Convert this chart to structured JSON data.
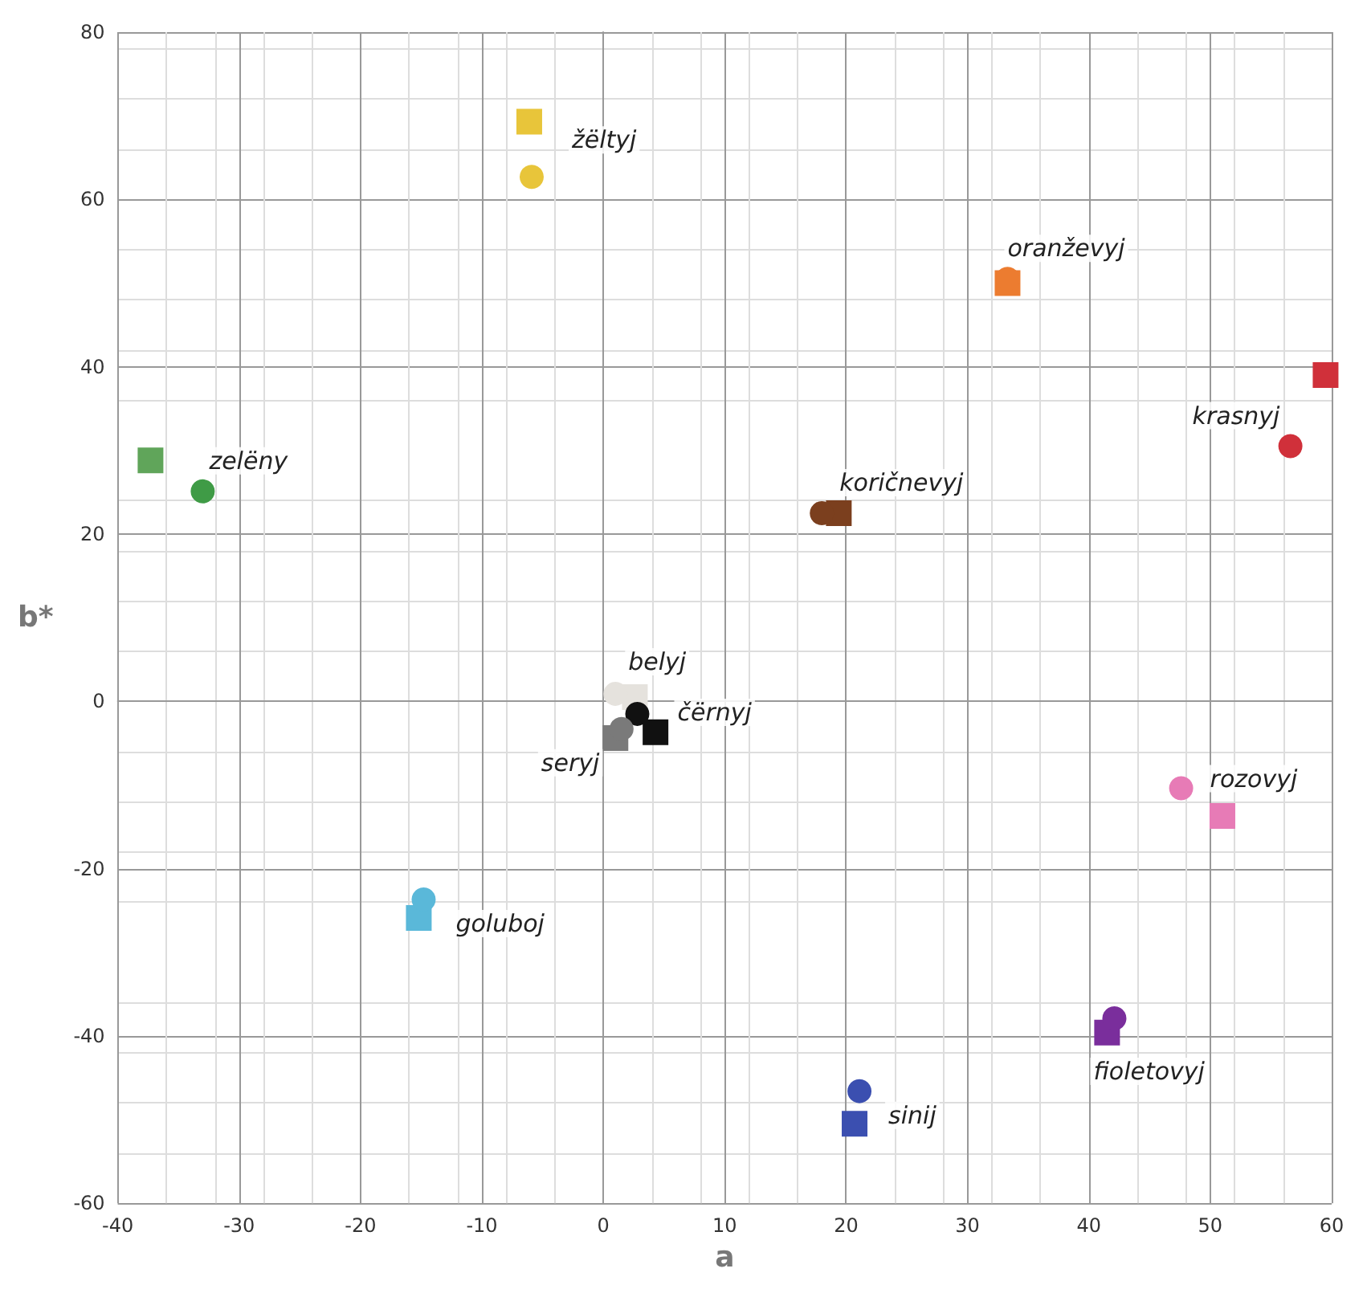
{
  "chart_data": {
    "type": "scatter",
    "xlabel": "a",
    "ylabel": "b*",
    "xlim": [
      -40,
      60
    ],
    "xticks": [
      -40,
      -30,
      -20,
      -10,
      0,
      10,
      20,
      30,
      40,
      50,
      60
    ],
    "ylim": [
      -60,
      80
    ],
    "yticks": [
      -60,
      -40,
      -20,
      0,
      20,
      40,
      60,
      80
    ],
    "grid": true,
    "legend": false,
    "series": [
      {
        "name": "žëltyj",
        "marker": "circle",
        "color": "#e8c53a",
        "x": [
          -5.9
        ],
        "values": [
          62.7
        ]
      },
      {
        "name": "oranževyj",
        "marker": "circle",
        "color": "#ec7c30",
        "x": [
          33.3
        ],
        "values": [
          50.5
        ]
      },
      {
        "name": "krasnyj",
        "marker": "circle",
        "color": "#d0303a",
        "x": [
          56.6
        ],
        "values": [
          30.5
        ]
      },
      {
        "name": "zelëny",
        "marker": "circle",
        "color": "#3f9b46",
        "x": [
          -33
        ],
        "values": [
          25.1
        ]
      },
      {
        "name": "koričnevyj",
        "marker": "circle",
        "color": "#7b3f1e",
        "x": [
          18
        ],
        "values": [
          22.5
        ]
      },
      {
        "name": "belyj",
        "marker": "circle",
        "color": "#e5e2dd",
        "x": [
          1
        ],
        "values": [
          0.9
        ]
      },
      {
        "name": "čërnyj",
        "marker": "circle",
        "color": "#111111",
        "x": [
          2.8
        ],
        "values": [
          -1.5
        ]
      },
      {
        "name": "seryj",
        "marker": "circle",
        "color": "#7a7a7a",
        "x": [
          1.5
        ],
        "values": [
          -3.3
        ]
      },
      {
        "name": "rozovyj",
        "marker": "circle",
        "color": "#e77bb6",
        "x": [
          47.6
        ],
        "values": [
          -10.4
        ]
      },
      {
        "name": "goluboj",
        "marker": "circle",
        "color": "#5ab8d9",
        "x": [
          -14.8
        ],
        "values": [
          -23.7
        ]
      },
      {
        "name": "fioletovyj",
        "marker": "circle",
        "color": "#7a2e9c",
        "x": [
          42.1
        ],
        "values": [
          -37.9
        ]
      },
      {
        "name": "sinij",
        "marker": "circle",
        "color": "#3b4fb0",
        "x": [
          21.1
        ],
        "values": [
          -46.6
        ]
      },
      {
        "marker": "square",
        "color": "#e8c53a",
        "x": [
          -6.1
        ],
        "values": [
          69.3
        ]
      },
      {
        "marker": "square",
        "color": "#ec7c30",
        "x": [
          33.3
        ],
        "values": [
          50
        ]
      },
      {
        "marker": "square",
        "color": "#d0303a",
        "x": [
          59.5
        ],
        "values": [
          39
        ]
      },
      {
        "marker": "square",
        "color": "#60a55a",
        "x": [
          -37.3
        ],
        "values": [
          28.8
        ]
      },
      {
        "marker": "square",
        "color": "#7b3f1e",
        "x": [
          19.4
        ],
        "values": [
          22.5
        ]
      },
      {
        "marker": "square",
        "color": "#e5e2dd",
        "x": [
          2.6
        ],
        "values": [
          0.5
        ]
      },
      {
        "marker": "square",
        "color": "#111111",
        "x": [
          4.3
        ],
        "values": [
          -3.7
        ]
      },
      {
        "marker": "square",
        "color": "#7a7a7a",
        "x": [
          1
        ],
        "values": [
          -4.4
        ]
      },
      {
        "marker": "square",
        "color": "#e77bb6",
        "x": [
          51
        ],
        "values": [
          -13.7
        ]
      },
      {
        "marker": "square",
        "color": "#5ab8d9",
        "x": [
          -15.2
        ],
        "values": [
          -25.9
        ]
      },
      {
        "marker": "square",
        "color": "#7a2e9c",
        "x": [
          41.5
        ],
        "values": [
          -39.6
        ]
      },
      {
        "marker": "square",
        "color": "#3b4fb0",
        "x": [
          20.7
        ],
        "values": [
          -50.5
        ]
      }
    ]
  }
}
